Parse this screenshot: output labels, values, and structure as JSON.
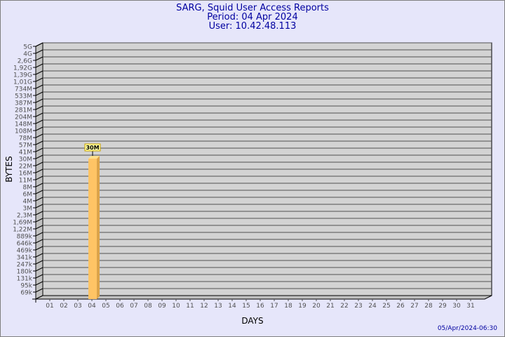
{
  "header": {
    "title": "SARG, Squid User Access Reports",
    "period": "Period: 04 Apr 2024",
    "user": "User: 10.42.48.113"
  },
  "footer": {
    "timestamp": "05/Apr/2024-06:30"
  },
  "colors": {
    "background": "#e6e6fa",
    "plot": "#d3d3d3",
    "bar": "#ffc465",
    "bar_side": "#dba34a",
    "text": "#0000a0"
  },
  "chart_data": {
    "type": "bar",
    "xlabel": "DAYS",
    "ylabel": "BYTES",
    "y_scale": "log",
    "grid": true,
    "y_ticks": [
      "5G",
      "4G",
      "2,6G",
      "1,92G",
      "1,39G",
      "1,01G",
      "734M",
      "533M",
      "387M",
      "281M",
      "204M",
      "148M",
      "108M",
      "78M",
      "57M",
      "41M",
      "30M",
      "22M",
      "16M",
      "11M",
      "8M",
      "6M",
      "4M",
      "3M",
      "2,3M",
      "1,69M",
      "1,22M",
      "889k",
      "646k",
      "469k",
      "341k",
      "247k",
      "180k",
      "131k",
      "95k",
      "69k"
    ],
    "categories": [
      "01",
      "02",
      "03",
      "04",
      "05",
      "06",
      "07",
      "08",
      "09",
      "10",
      "11",
      "12",
      "13",
      "14",
      "15",
      "16",
      "17",
      "18",
      "19",
      "20",
      "21",
      "22",
      "23",
      "24",
      "25",
      "26",
      "27",
      "28",
      "29",
      "30",
      "31"
    ],
    "bars": [
      {
        "day": "04",
        "value_label": "30M"
      }
    ]
  }
}
